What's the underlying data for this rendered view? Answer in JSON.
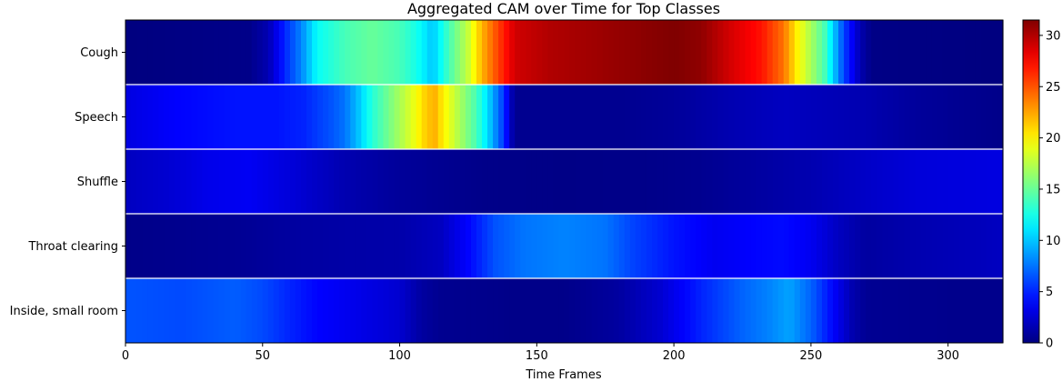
{
  "chart_data": {
    "type": "heatmap",
    "title": "Aggregated CAM over Time for Top Classes",
    "xlabel": "Time Frames",
    "ylabel": "",
    "xlim": [
      0,
      320
    ],
    "x_ticks": [
      0,
      50,
      100,
      150,
      200,
      250,
      300
    ],
    "colormap": "jet",
    "vmin": 0,
    "vmax": 31.5,
    "colorbar_ticks": [
      0,
      5,
      10,
      15,
      20,
      25,
      30
    ],
    "row_separator_color": "#ffffff",
    "rows": [
      {
        "label": "Cough",
        "knots": [
          [
            0,
            0
          ],
          [
            45,
            0.3
          ],
          [
            52,
            1.5
          ],
          [
            58,
            5
          ],
          [
            64,
            8
          ],
          [
            70,
            12
          ],
          [
            80,
            14
          ],
          [
            90,
            15
          ],
          [
            100,
            14
          ],
          [
            106,
            12.5
          ],
          [
            112,
            10
          ],
          [
            118,
            14
          ],
          [
            125,
            18
          ],
          [
            130,
            22
          ],
          [
            135,
            25
          ],
          [
            142,
            29
          ],
          [
            155,
            30
          ],
          [
            170,
            30.5
          ],
          [
            185,
            31
          ],
          [
            200,
            31.5
          ],
          [
            210,
            31
          ],
          [
            220,
            29
          ],
          [
            232,
            27
          ],
          [
            240,
            24
          ],
          [
            245,
            20
          ],
          [
            250,
            17
          ],
          [
            255,
            14
          ],
          [
            262,
            6
          ],
          [
            268,
            1.5
          ],
          [
            272,
            0.2
          ],
          [
            320,
            0
          ]
        ]
      },
      {
        "label": "Speech",
        "knots": [
          [
            0,
            3
          ],
          [
            20,
            4
          ],
          [
            40,
            4.5
          ],
          [
            55,
            4.5
          ],
          [
            65,
            5
          ],
          [
            75,
            6.5
          ],
          [
            80,
            7.5
          ],
          [
            85,
            10
          ],
          [
            90,
            13
          ],
          [
            95,
            15
          ],
          [
            100,
            17
          ],
          [
            105,
            19
          ],
          [
            110,
            21.5
          ],
          [
            113,
            22
          ],
          [
            116,
            20
          ],
          [
            120,
            18
          ],
          [
            128,
            14
          ],
          [
            133,
            10
          ],
          [
            138,
            5.5
          ],
          [
            141,
            1.5
          ],
          [
            143,
            0.5
          ],
          [
            180,
            0.5
          ],
          [
            200,
            0.8
          ],
          [
            220,
            1.5
          ],
          [
            240,
            2
          ],
          [
            270,
            1.5
          ],
          [
            290,
            0.8
          ],
          [
            320,
            0.3
          ]
        ]
      },
      {
        "label": "Shuffle",
        "knots": [
          [
            0,
            2
          ],
          [
            15,
            2.5
          ],
          [
            30,
            3.3
          ],
          [
            45,
            3.6
          ],
          [
            60,
            2.8
          ],
          [
            80,
            1.5
          ],
          [
            100,
            0.8
          ],
          [
            130,
            0.3
          ],
          [
            160,
            0.2
          ],
          [
            190,
            0.3
          ],
          [
            210,
            0.5
          ],
          [
            230,
            1
          ],
          [
            250,
            1.5
          ],
          [
            270,
            2.2
          ],
          [
            290,
            2.8
          ],
          [
            320,
            3
          ]
        ]
      },
      {
        "label": "Throat clearing",
        "knots": [
          [
            0,
            0.3
          ],
          [
            40,
            0.6
          ],
          [
            60,
            1
          ],
          [
            80,
            1.2
          ],
          [
            100,
            1.3
          ],
          [
            115,
            2
          ],
          [
            125,
            4
          ],
          [
            135,
            6.5
          ],
          [
            145,
            7.5
          ],
          [
            160,
            8
          ],
          [
            175,
            7.5
          ],
          [
            185,
            6
          ],
          [
            200,
            4.5
          ],
          [
            215,
            3.5
          ],
          [
            230,
            4
          ],
          [
            240,
            4.2
          ],
          [
            250,
            3.5
          ],
          [
            260,
            2
          ],
          [
            270,
            1
          ],
          [
            290,
            1.5
          ],
          [
            320,
            2
          ]
        ]
      },
      {
        "label": "Inside, small room",
        "knots": [
          [
            0,
            6.5
          ],
          [
            20,
            6.2
          ],
          [
            40,
            6.8
          ],
          [
            50,
            6.2
          ],
          [
            60,
            5
          ],
          [
            70,
            4
          ],
          [
            80,
            3.5
          ],
          [
            100,
            2.5
          ],
          [
            108,
            1
          ],
          [
            115,
            0.5
          ],
          [
            140,
            0.3
          ],
          [
            160,
            0.3
          ],
          [
            180,
            1
          ],
          [
            195,
            2.5
          ],
          [
            210,
            5
          ],
          [
            225,
            7
          ],
          [
            235,
            8
          ],
          [
            242,
            9
          ],
          [
            250,
            7
          ],
          [
            258,
            4
          ],
          [
            265,
            1.5
          ],
          [
            270,
            0.6
          ],
          [
            300,
            0.4
          ],
          [
            320,
            0.4
          ]
        ]
      }
    ]
  }
}
